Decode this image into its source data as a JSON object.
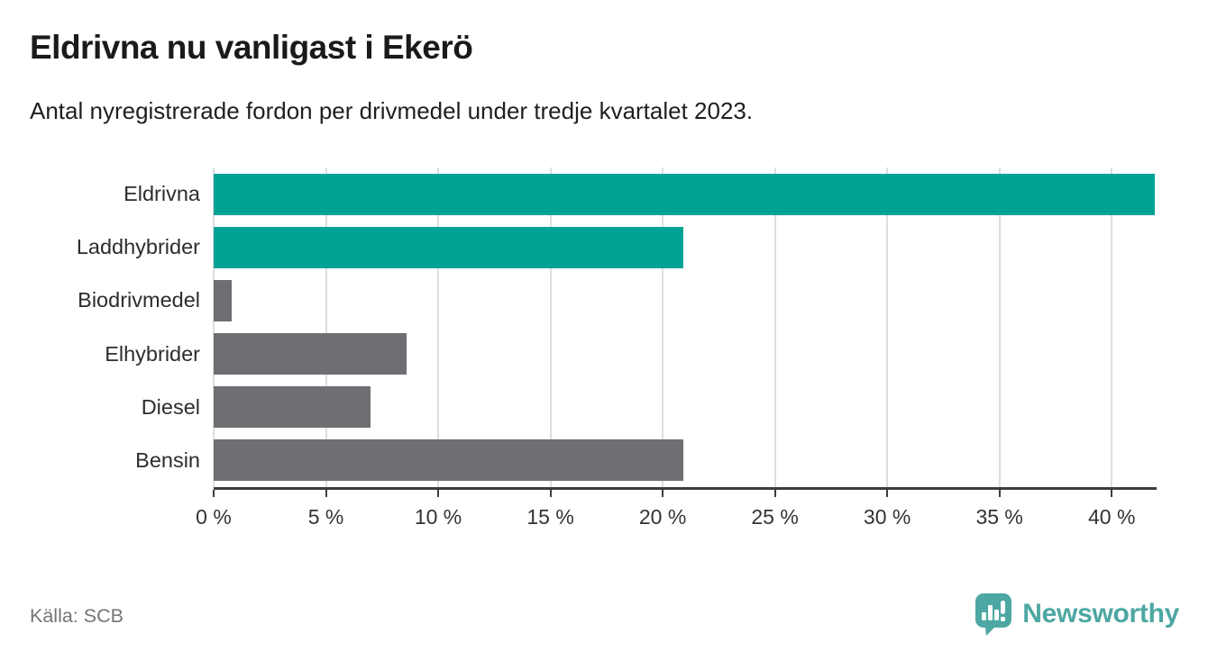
{
  "title": "Eldrivna nu vanligast i Ekerö",
  "subtitle": "Antal nyregistrerade fordon per drivmedel under tredje kvartalet 2023.",
  "source": "Källa: SCB",
  "branding": {
    "name": "Newsworthy",
    "logo_icon": "speech-bubble-bar-chart-icon",
    "color": "#4da7a2"
  },
  "colors": {
    "highlight": "#00a296",
    "default": "#6e6e73",
    "gridline": "#dedede",
    "axis": "#3d3d3d",
    "label_text": "#2d2d2d"
  },
  "chart_data": {
    "type": "bar",
    "orientation": "horizontal",
    "title": "Eldrivna nu vanligast i Ekerö",
    "subtitle": "Antal nyregistrerade fordon per drivmedel under tredje kvartalet 2023.",
    "unit": "%",
    "categories": [
      "Eldrivna",
      "Laddhybrider",
      "Biodrivmedel",
      "Elhybrider",
      "Diesel",
      "Bensin"
    ],
    "values": [
      41.9,
      20.9,
      0.8,
      8.6,
      7.0,
      20.9
    ],
    "bar_color_roles": [
      "highlight",
      "highlight",
      "default",
      "default",
      "default",
      "default"
    ],
    "xlim": [
      0,
      42
    ],
    "x_ticks": [
      0,
      5,
      10,
      15,
      20,
      25,
      30,
      35,
      40
    ],
    "x_tick_labels": [
      "0 %",
      "5 %",
      "10 %",
      "15 %",
      "20 %",
      "25 %",
      "30 %",
      "35 %",
      "40 %"
    ],
    "grid": "vertical",
    "legend": "none",
    "source": "Källa: SCB"
  }
}
